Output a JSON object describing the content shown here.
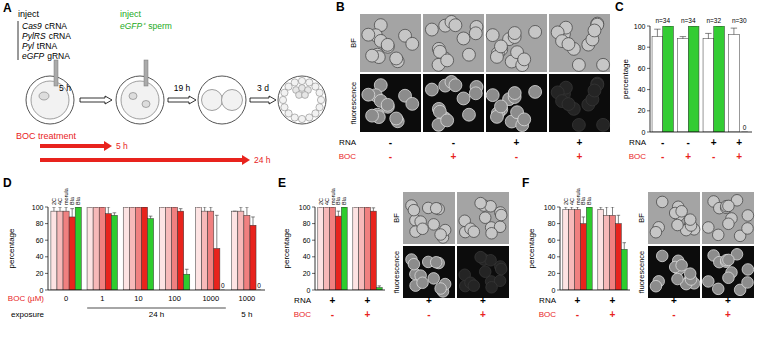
{
  "panel_letters": [
    "A",
    "B",
    "C",
    "D",
    "E",
    "F"
  ],
  "schematic": {
    "inject_rna": "inject",
    "rnas": [
      [
        "Cas9",
        "cRNA"
      ],
      [
        "PylRS",
        "cRNA"
      ],
      [
        "Pyl",
        "tRNA"
      ],
      [
        "eGFP",
        "gRNA"
      ]
    ],
    "inject_sperm": "inject",
    "sperm": [
      "eGFP⁺",
      "sperm"
    ],
    "intervals": [
      "5 h",
      "19 h",
      "3 d"
    ],
    "treatment": "BOC treatment",
    "treatment_times": [
      "5 h",
      "24 h"
    ]
  },
  "images": {
    "rows": [
      "BF",
      "fluorescence"
    ],
    "conditions": [
      {
        "label": "RNA",
        "values": [
          "-",
          "-",
          "+",
          "+"
        ]
      },
      {
        "label": "BOC",
        "values": [
          "-",
          "+",
          "-",
          "+"
        ]
      }
    ]
  },
  "chart_data": [
    {
      "type": "bar",
      "ylabel": "percentage",
      "ylim": [
        0,
        100
      ],
      "yticks": [
        0,
        20,
        40,
        60,
        80,
        100
      ],
      "categories": [
        null,
        null,
        null,
        null
      ],
      "annotations": [
        "n=34",
        "n=34",
        "n=32",
        "n=30"
      ],
      "series": [
        {
          "color": "#ffffff",
          "values": [
            90,
            88,
            88,
            92
          ],
          "errors": [
            7,
            2,
            5,
            6
          ]
        },
        {
          "color": "#33cc33",
          "values": [
            100,
            100,
            100,
            0
          ],
          "errors": [
            0,
            0,
            0,
            0
          ],
          "value_labels": [
            null,
            null,
            null,
            "0"
          ]
        }
      ],
      "conditions": [
        {
          "label": "RNA",
          "values": [
            "-",
            "-",
            "+",
            "+"
          ]
        },
        {
          "label": "BOC",
          "values": [
            "-",
            "+",
            "-",
            "+"
          ]
        }
      ]
    },
    {
      "type": "bar",
      "ylabel": "percentage",
      "ylim": [
        0,
        100
      ],
      "yticks": [
        0,
        20,
        40,
        60,
        80,
        100
      ],
      "xlabel": "BOC (µM)",
      "categories": [
        "0",
        "1",
        "10",
        "100",
        "1000",
        "1000"
      ],
      "exposure": {
        "label": "exposure",
        "values": [
          null,
          "24 h",
          "24 h",
          "24 h",
          "24 h",
          "5 h"
        ]
      },
      "series": [
        {
          "name": "2C",
          "color": "#fde3e3",
          "values": [
            95,
            100,
            100,
            100,
            100,
            95
          ],
          "errors": [
            5,
            0,
            0,
            0,
            0,
            0
          ]
        },
        {
          "name": "4C",
          "color": "#f7b9b9",
          "values": [
            95,
            100,
            100,
            100,
            95,
            95
          ],
          "errors": [
            5,
            0,
            0,
            0,
            5,
            5
          ]
        },
        {
          "name": "morula",
          "color": "#f08080",
          "values": [
            95,
            100,
            100,
            100,
            95,
            90
          ],
          "errors": [
            5,
            0,
            0,
            0,
            5,
            10
          ]
        },
        {
          "name": "Bla",
          "color": "#e8231d",
          "values": [
            88,
            92,
            100,
            95,
            50,
            78
          ],
          "errors": [
            10,
            8,
            0,
            3,
            40,
            10
          ]
        },
        {
          "name": "Bla",
          "color": "#2ecc2e",
          "values": [
            100,
            90,
            86,
            19,
            0,
            0
          ],
          "errors": [
            0,
            3,
            3,
            6,
            0,
            0
          ],
          "value_labels": [
            null,
            null,
            null,
            null,
            "0",
            "0"
          ]
        }
      ]
    },
    {
      "type": "bar",
      "ylabel": "percentage",
      "ylim": [
        0,
        100
      ],
      "yticks": [
        0,
        20,
        40,
        60,
        80,
        100
      ],
      "categories": [
        null,
        null
      ],
      "series": [
        {
          "name": "2C",
          "color": "#fde3e3",
          "values": [
            100,
            100
          ],
          "errors": [
            0,
            0
          ]
        },
        {
          "name": "4C",
          "color": "#f7b9b9",
          "values": [
            100,
            100
          ],
          "errors": [
            0,
            0
          ]
        },
        {
          "name": "morula",
          "color": "#f08080",
          "values": [
            100,
            100
          ],
          "errors": [
            0,
            0
          ]
        },
        {
          "name": "Bla",
          "color": "#e8231d",
          "values": [
            89,
            95
          ],
          "errors": [
            6,
            4
          ]
        },
        {
          "name": "Bla",
          "color": "#2ecc2e",
          "values": [
            100,
            3
          ],
          "errors": [
            0,
            2
          ]
        }
      ],
      "conditions": [
        {
          "label": "RNA",
          "values": [
            "+",
            "+"
          ]
        },
        {
          "label": "BOC",
          "values": [
            "-",
            "+"
          ]
        }
      ],
      "images": {
        "rows": [
          "BF",
          "fluorescence"
        ]
      }
    },
    {
      "type": "bar",
      "ylabel": "percentage",
      "ylim": [
        0,
        100
      ],
      "yticks": [
        0,
        20,
        40,
        60,
        80,
        100
      ],
      "categories": [
        null,
        null
      ],
      "series": [
        {
          "name": "2C",
          "color": "#fde3e3",
          "values": [
            97,
            97
          ],
          "errors": [
            3,
            3
          ]
        },
        {
          "name": "4C",
          "color": "#f7b9b9",
          "values": [
            97,
            90
          ],
          "errors": [
            3,
            10
          ]
        },
        {
          "name": "morula",
          "color": "#f08080",
          "values": [
            97,
            90
          ],
          "errors": [
            3,
            10
          ]
        },
        {
          "name": "Bla",
          "color": "#e8231d",
          "values": [
            80,
            80
          ],
          "errors": [
            8,
            10
          ]
        },
        {
          "name": "Bla",
          "color": "#2ecc2e",
          "values": [
            100,
            49
          ],
          "errors": [
            0,
            8
          ]
        }
      ],
      "conditions": [
        {
          "label": "RNA",
          "values": [
            "+",
            "+"
          ]
        },
        {
          "label": "BOC",
          "values": [
            "-",
            "+"
          ]
        }
      ],
      "images": {
        "rows": [
          "BF",
          "fluorescence"
        ]
      }
    }
  ]
}
